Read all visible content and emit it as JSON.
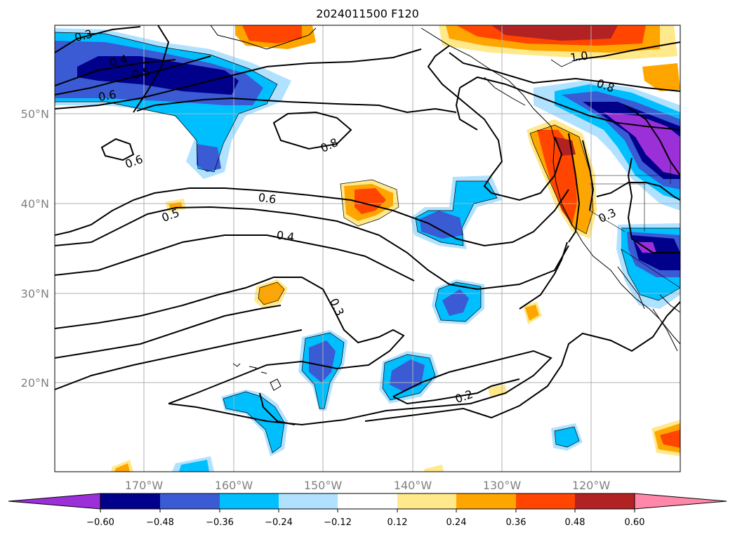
{
  "title": "2024011500 F120",
  "colors": {
    "purple": "#9b30d9",
    "navy": "#00008b",
    "royal_blue": "#3a5bd4",
    "deep_sky": "#00bfff",
    "light_sky": "#b0e2ff",
    "white": "#ffffff",
    "pale_yellow": "#ffe98a",
    "orange": "#ffa500",
    "orange_red": "#ff4500",
    "dark_red": "#b22222",
    "pink": "#ff88aa"
  },
  "lat_labels": [
    "50°N",
    "40°N",
    "30°N",
    "20°N"
  ],
  "lon_labels": [
    "170°W",
    "160°W",
    "150°W",
    "140°W",
    "130°W",
    "120°W"
  ],
  "contour_labels": [
    "0.3",
    "0.4",
    "0.5",
    "0.6",
    "0.6",
    "0.8",
    "0.6",
    "0.5",
    "0.4",
    "0.3",
    "0.2",
    "1.0",
    "0.8",
    "0.3"
  ],
  "colorbar": {
    "ticks": [
      "−0.60",
      "−0.48",
      "−0.36",
      "−0.24",
      "−0.12",
      "0.12",
      "0.24",
      "0.36",
      "0.48",
      "0.60"
    ]
  }
}
